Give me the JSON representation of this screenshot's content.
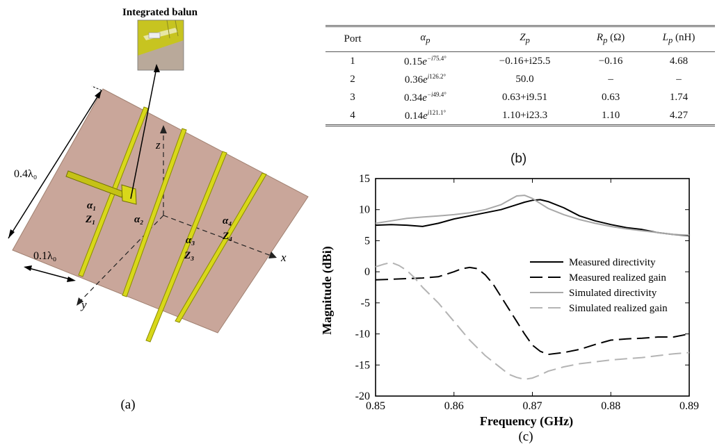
{
  "panel_a": {
    "title": "Integrated balun",
    "dim_long": "0.4λ₀",
    "dim_short": "0.1λ₀",
    "axis_x": "x",
    "axis_y": "y",
    "axis_z": "z",
    "labels": [
      {
        "alpha": "α₁",
        "z": "Z₁"
      },
      {
        "alpha": "α₂",
        "z": ""
      },
      {
        "alpha": "α₃",
        "z": "Z₃"
      },
      {
        "alpha": "α₄",
        "z": "Z₄"
      }
    ],
    "caption": "(a)",
    "colors": {
      "substrate": "#c9a69a",
      "strip": "#d8d81a",
      "strip_edge": "#8a8a00"
    }
  },
  "panel_b": {
    "headers": [
      "Port",
      "αp",
      "Zp",
      "Rp (Ω)",
      "Lp (nH)"
    ],
    "rows": [
      {
        "port": "1",
        "alpha": "0.15e^-i75.4°",
        "z": "−0.16+i25.5",
        "r": "−0.16",
        "l": "4.68"
      },
      {
        "port": "2",
        "alpha": "0.36e^i126.2°",
        "z": "50.0",
        "r": "–",
        "l": "–"
      },
      {
        "port": "3",
        "alpha": "0.34e^-i49.4°",
        "z": "0.63+i9.51",
        "r": "0.63",
        "l": "1.74"
      },
      {
        "port": "4",
        "alpha": "0.14e^i121.1°",
        "z": "1.10+i23.3",
        "r": "1.10",
        "l": "4.27"
      }
    ],
    "caption": "(b)"
  },
  "chart_data": {
    "type": "line",
    "xlabel": "Frequency (GHz)",
    "ylabel": "Magnitude (dBi)",
    "xlim": [
      0.85,
      0.89
    ],
    "ylim": [
      -20,
      15
    ],
    "xticks": [
      "0.85",
      "0.86",
      "0.87",
      "0.88",
      "0.89"
    ],
    "yticks": [
      "15",
      "10",
      "5",
      "0",
      "-5",
      "-10",
      "-15",
      "-20"
    ],
    "grid": false,
    "legend_position": "center-right",
    "caption": "(c)",
    "series": [
      {
        "name": "Measured directivity",
        "color": "#000000",
        "dash": "solid",
        "x": [
          0.85,
          0.852,
          0.854,
          0.856,
          0.858,
          0.86,
          0.862,
          0.864,
          0.866,
          0.868,
          0.869,
          0.87,
          0.871,
          0.872,
          0.874,
          0.876,
          0.878,
          0.88,
          0.882,
          0.884,
          0.886,
          0.888,
          0.89
        ],
        "y": [
          7.5,
          7.6,
          7.5,
          7.3,
          7.8,
          8.5,
          9.0,
          9.5,
          10.0,
          10.8,
          11.2,
          11.5,
          11.6,
          11.3,
          10.3,
          9.0,
          8.2,
          7.6,
          7.1,
          6.8,
          6.3,
          6.0,
          5.8
        ]
      },
      {
        "name": "Measured realized gain",
        "color": "#000000",
        "dash": "long",
        "x": [
          0.85,
          0.852,
          0.854,
          0.856,
          0.858,
          0.86,
          0.861,
          0.862,
          0.863,
          0.864,
          0.865,
          0.866,
          0.867,
          0.868,
          0.869,
          0.87,
          0.871,
          0.872,
          0.874,
          0.876,
          0.878,
          0.88,
          0.882,
          0.884,
          0.886,
          0.888,
          0.89
        ],
        "y": [
          -1.3,
          -1.2,
          -1.1,
          -1.0,
          -0.8,
          0.0,
          0.5,
          0.7,
          0.5,
          -0.5,
          -2.0,
          -4.0,
          -6.0,
          -8.0,
          -10.0,
          -11.8,
          -12.8,
          -13.3,
          -13.0,
          -12.5,
          -11.7,
          -11.0,
          -10.8,
          -10.7,
          -10.5,
          -10.5,
          -10.0
        ]
      },
      {
        "name": "Simulated directivity",
        "color": "#a8a8a8",
        "dash": "solid",
        "x": [
          0.85,
          0.852,
          0.854,
          0.856,
          0.858,
          0.86,
          0.862,
          0.864,
          0.866,
          0.867,
          0.868,
          0.869,
          0.87,
          0.871,
          0.872,
          0.874,
          0.876,
          0.878,
          0.88,
          0.882,
          0.884,
          0.886,
          0.888,
          0.89
        ],
        "y": [
          7.8,
          8.2,
          8.6,
          8.8,
          9.0,
          9.2,
          9.5,
          10.0,
          10.8,
          11.5,
          12.2,
          12.3,
          11.8,
          11.0,
          10.2,
          9.2,
          8.4,
          7.8,
          7.3,
          6.9,
          6.6,
          6.3,
          6.0,
          5.9
        ]
      },
      {
        "name": "Simulated realized gain",
        "color": "#b4b4b4",
        "dash": "long",
        "x": [
          0.85,
          0.851,
          0.852,
          0.853,
          0.854,
          0.855,
          0.856,
          0.858,
          0.86,
          0.862,
          0.864,
          0.866,
          0.867,
          0.868,
          0.869,
          0.87,
          0.871,
          0.872,
          0.874,
          0.876,
          0.878,
          0.88,
          0.882,
          0.884,
          0.886,
          0.888,
          0.89
        ],
        "y": [
          0.8,
          1.2,
          1.5,
          1.0,
          0.2,
          -1.0,
          -2.5,
          -5.0,
          -8.0,
          -11.0,
          -13.5,
          -15.5,
          -16.5,
          -17.0,
          -17.3,
          -17.1,
          -16.6,
          -16.0,
          -15.3,
          -14.8,
          -14.5,
          -14.2,
          -14.0,
          -13.8,
          -13.5,
          -13.2,
          -13.0
        ]
      }
    ]
  }
}
